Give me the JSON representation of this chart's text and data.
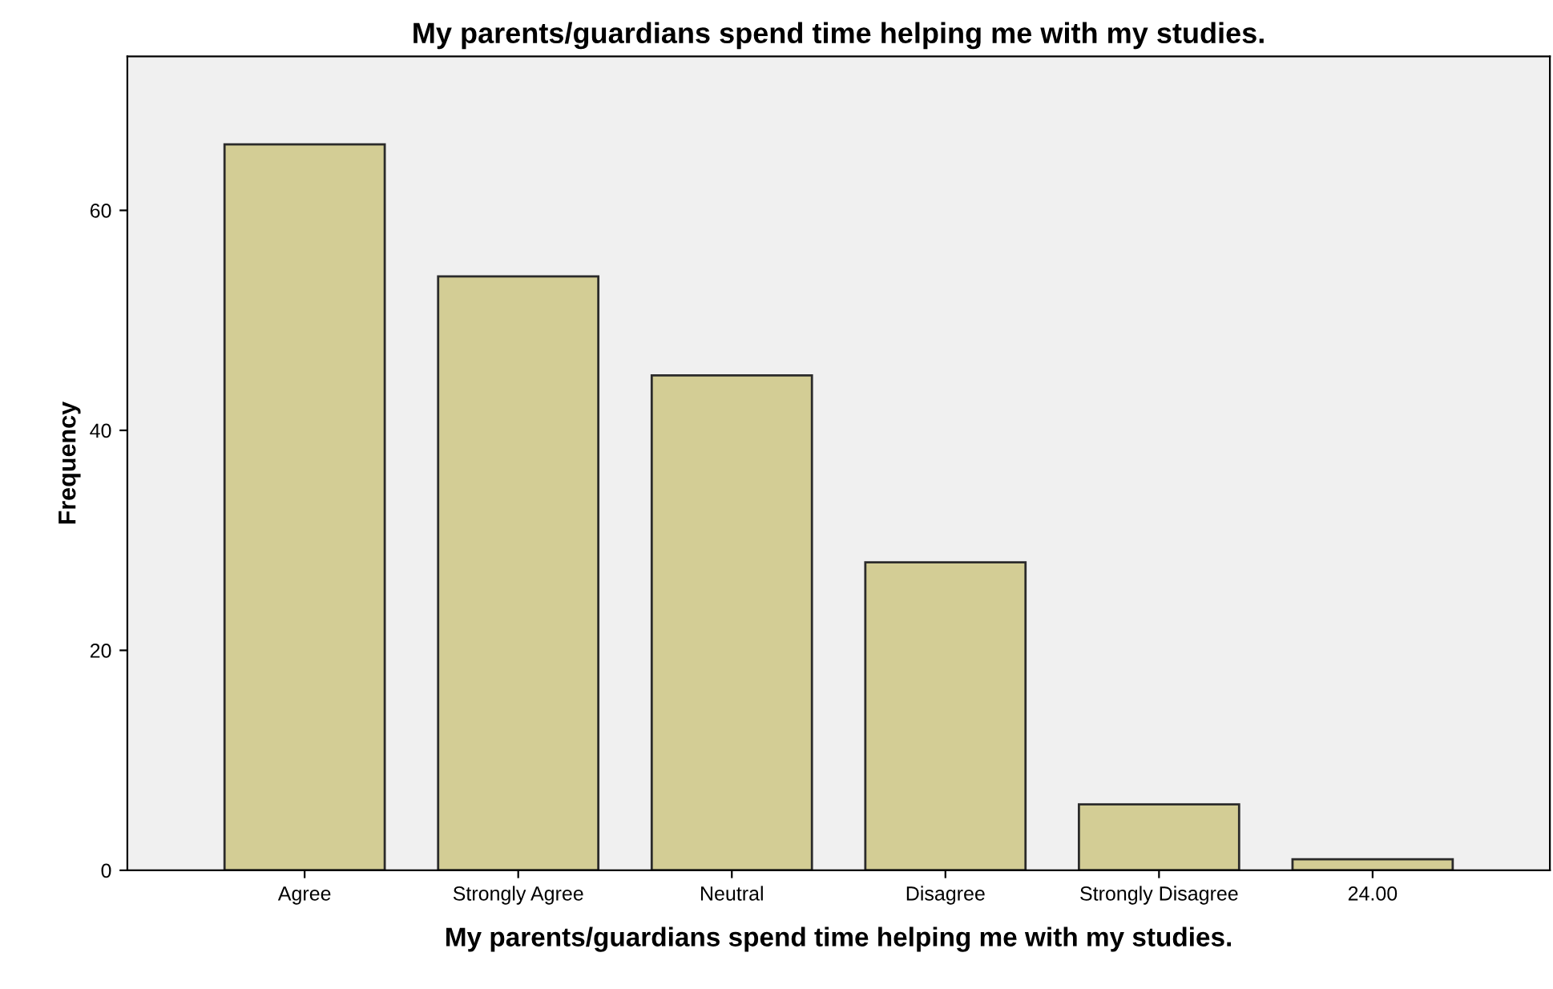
{
  "chart_data": {
    "type": "bar",
    "title": "My parents/guardians spend time helping me with my studies.",
    "xlabel": "My parents/guardians spend time helping me with my studies.",
    "ylabel": "Frequency",
    "categories": [
      "Agree",
      "Strongly Agree",
      "Neutral",
      "Disagree",
      "Strongly Disagree",
      "24.00"
    ],
    "values": [
      66,
      54,
      45,
      28,
      6,
      1
    ],
    "color": "#d3cd95",
    "ylim": [
      0,
      74
    ],
    "yticks": [
      0,
      20,
      40,
      60
    ],
    "grid": false,
    "legend": false
  }
}
